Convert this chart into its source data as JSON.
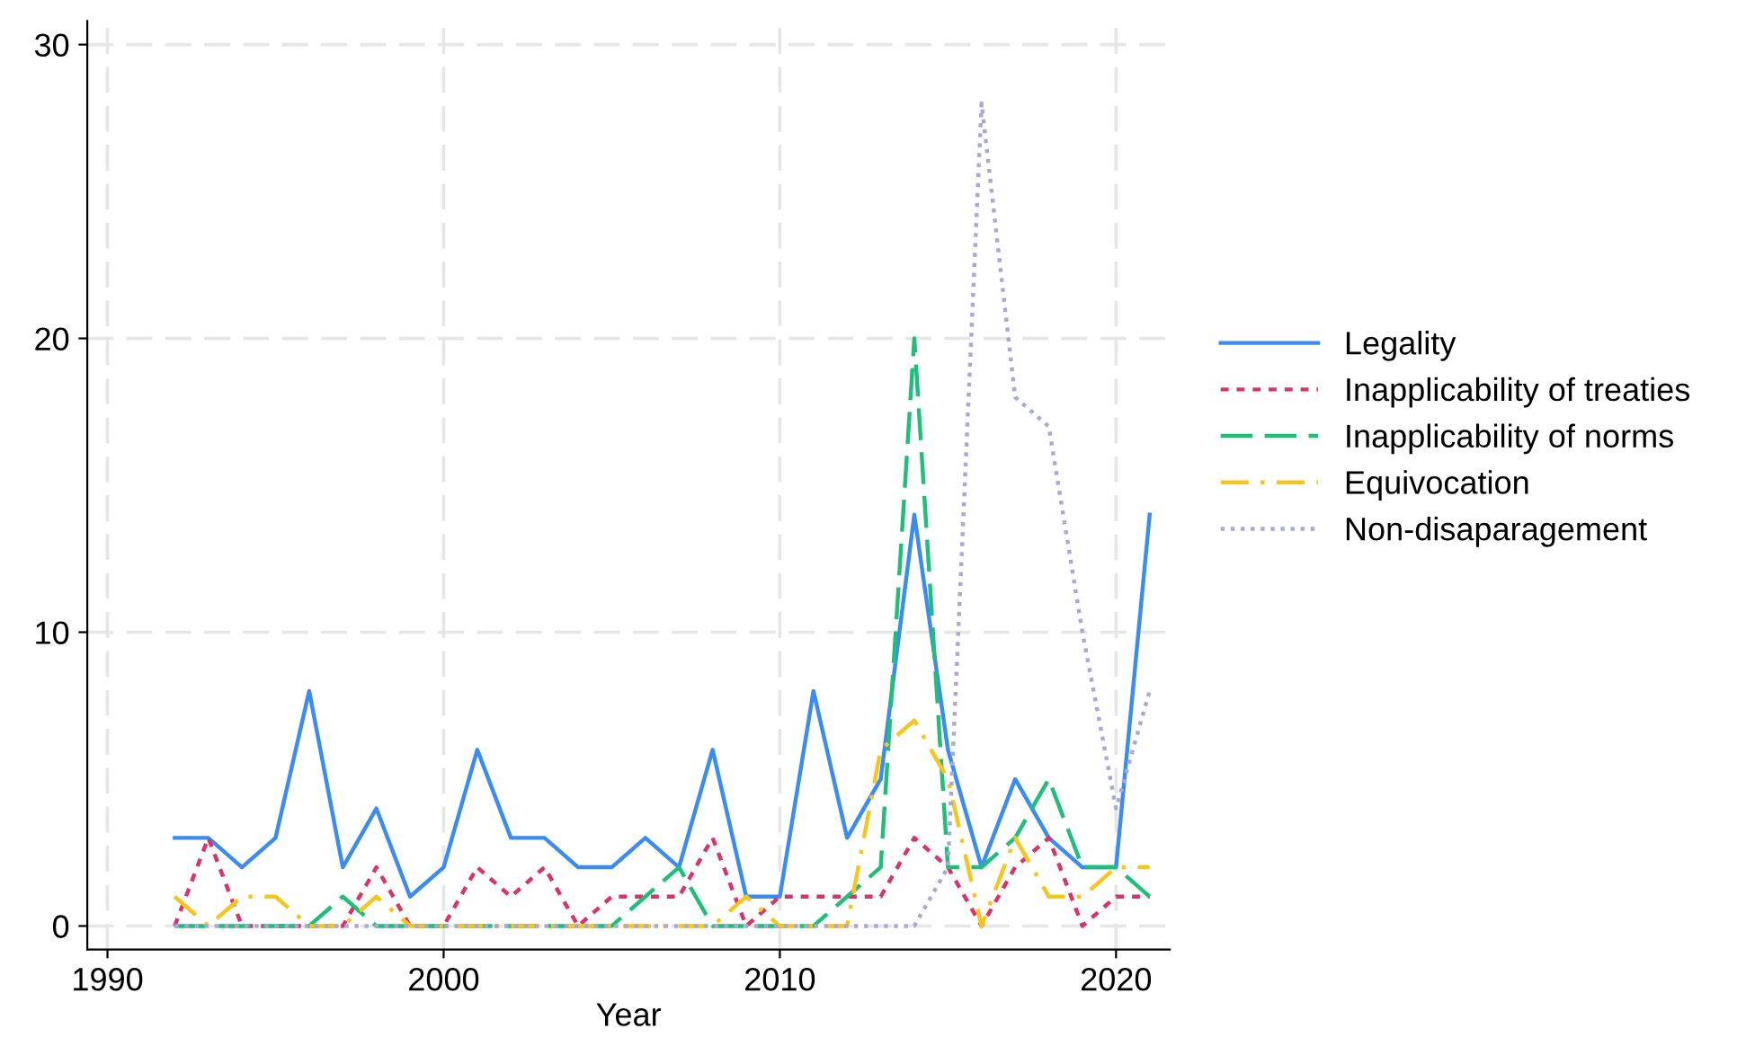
{
  "chart_data": {
    "type": "line",
    "xlabel": "Year",
    "x": [
      1992,
      1993,
      1994,
      1995,
      1996,
      1997,
      1998,
      1999,
      2000,
      2001,
      2002,
      2003,
      2004,
      2005,
      2006,
      2007,
      2008,
      2009,
      2010,
      2011,
      2012,
      2013,
      2014,
      2015,
      2016,
      2017,
      2018,
      2019,
      2020,
      2021
    ],
    "series": [
      {
        "name": "Legality",
        "color": "#3b8cf2",
        "line_style": "solid",
        "values": [
          3,
          3,
          2,
          3,
          8,
          2,
          4,
          1,
          2,
          6,
          3,
          3,
          2,
          2,
          3,
          2,
          6,
          1,
          1,
          8,
          3,
          5,
          14,
          6,
          2,
          5,
          3,
          2,
          2,
          14
        ]
      },
      {
        "name": "Inapplicability of treaties",
        "color": "#d9336b",
        "line_style": "dotted",
        "values": [
          0,
          3,
          0,
          0,
          0,
          0,
          2,
          0,
          0,
          2,
          1,
          2,
          0,
          1,
          1,
          1,
          3,
          0,
          1,
          1,
          1,
          1,
          3,
          2,
          0,
          2,
          3,
          0,
          1,
          1
        ]
      },
      {
        "name": "Inapplicability of norms",
        "color": "#1fbf7a",
        "line_style": "dashed",
        "values": [
          0,
          0,
          0,
          0,
          0,
          1,
          0,
          0,
          0,
          0,
          0,
          0,
          0,
          0,
          1,
          2,
          0,
          0,
          0,
          0,
          1,
          2,
          20,
          2,
          2,
          3,
          5,
          2,
          2,
          1
        ]
      },
      {
        "name": "Equivocation",
        "color": "#f7c61b",
        "line_style": "dashdot",
        "values": [
          1,
          0,
          1,
          1,
          0,
          0,
          1,
          0,
          0,
          0,
          0,
          0,
          0,
          0,
          0,
          0,
          0,
          1,
          0,
          0,
          0,
          6,
          7,
          5,
          0,
          3,
          1,
          1,
          2,
          2
        ]
      },
      {
        "name": "Non-disaparagement",
        "color": "#a9a9d4",
        "line_style": "dotted",
        "values": [
          0,
          0,
          0,
          0,
          0,
          0,
          0,
          0,
          0,
          0,
          0,
          0,
          0,
          0,
          0,
          0,
          0,
          0,
          0,
          0,
          0,
          0,
          0,
          2,
          28,
          18,
          17,
          10,
          4,
          8
        ]
      }
    ],
    "xlim": [
      1989.4,
      2021.6
    ],
    "ylim": [
      -0.8,
      30.8
    ],
    "xticks": [
      1990,
      2000,
      2010,
      2020
    ],
    "yticks": [
      0,
      10,
      20,
      30
    ],
    "grid": true,
    "legend": "right",
    "marker": "none"
  }
}
